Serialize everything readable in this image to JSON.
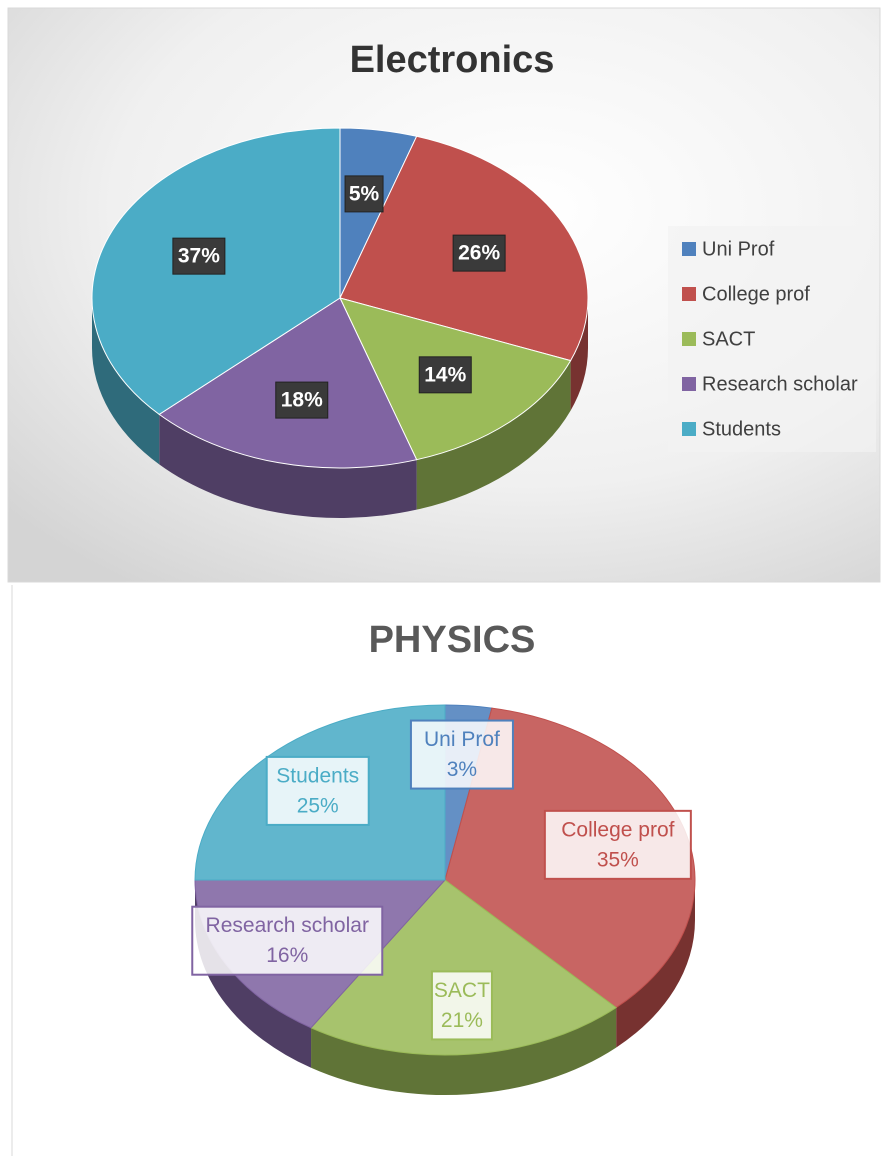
{
  "chart_data": [
    {
      "type": "pie",
      "title": "Electronics",
      "categories": [
        "Uni Prof",
        "College prof",
        "SACT",
        "Research scholar",
        "Students"
      ],
      "values": [
        5,
        26,
        14,
        18,
        37
      ],
      "value_labels": [
        "5%",
        "26%",
        "14%",
        "18%",
        "37%"
      ],
      "colors": [
        "#4f81bd",
        "#c0504d",
        "#9bbb59",
        "#8064a2",
        "#4bacc6"
      ],
      "legend": "right"
    },
    {
      "type": "pie",
      "title": "PHYSICS",
      "categories": [
        "Uni Prof",
        "College prof",
        "SACT",
        "Research scholar",
        "Students"
      ],
      "values": [
        3,
        35,
        21,
        16,
        25
      ],
      "value_labels": [
        "3%",
        "35%",
        "21%",
        "16%",
        "25%"
      ],
      "colors": [
        "#4f81bd",
        "#c0504d",
        "#9bbb59",
        "#8064a2",
        "#4bacc6"
      ]
    }
  ]
}
